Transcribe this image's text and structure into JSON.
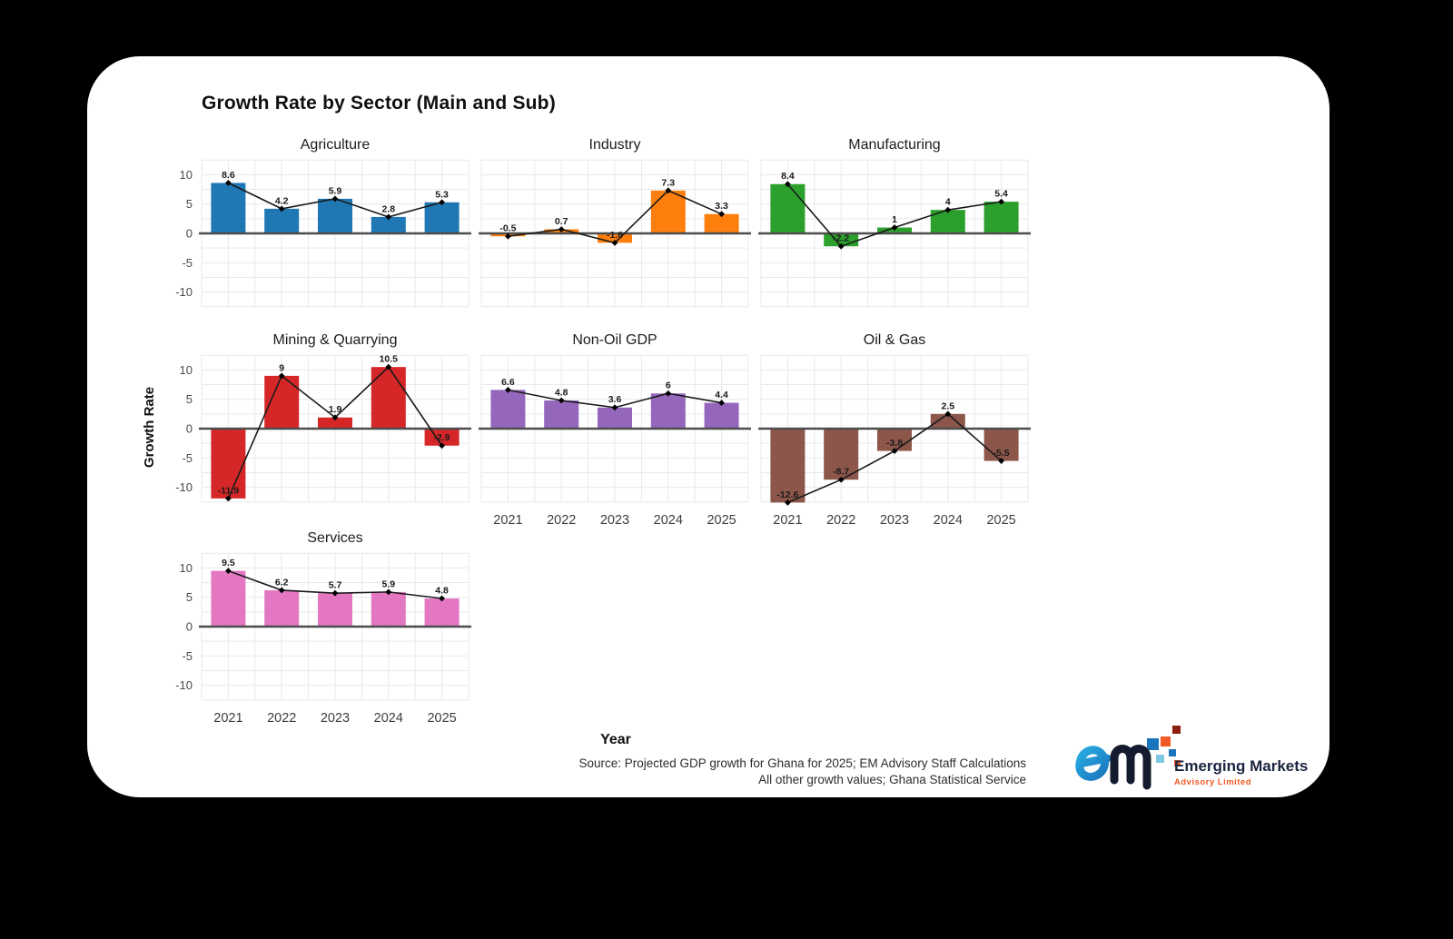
{
  "page": {
    "title": "Growth Rate by Sector (Main and Sub)",
    "background": "#000000",
    "card_background": "#ffffff"
  },
  "chart_data": {
    "type": "bar",
    "overlay": "line-with-markers",
    "title": "Growth Rate by Sector (Main and Sub)",
    "categories": [
      "2021",
      "2022",
      "2023",
      "2024",
      "2025"
    ],
    "xlabel": "Year",
    "ylabel": "Growth Rate",
    "yticks": [
      10,
      5,
      0,
      -5,
      -10
    ],
    "ylim": [
      -13,
      13
    ],
    "grid": true,
    "gridline_color": "#e9e9e9",
    "zero_line_color": "#4d4d4d",
    "line_color": "#1a1a1a",
    "facets": [
      {
        "name": "Agriculture",
        "color": "#1f77b4",
        "row": 0,
        "col": 0,
        "show_y_ticks": true,
        "show_x_ticks": false,
        "values": [
          8.6,
          4.2,
          5.9,
          2.8,
          5.3
        ]
      },
      {
        "name": "Industry",
        "color": "#ff7f0e",
        "row": 0,
        "col": 1,
        "show_y_ticks": false,
        "show_x_ticks": false,
        "values": [
          -0.5,
          0.7,
          -1.6,
          7.3,
          3.3
        ]
      },
      {
        "name": "Manufacturing",
        "color": "#2ca02c",
        "row": 0,
        "col": 2,
        "show_y_ticks": false,
        "show_x_ticks": false,
        "values": [
          8.4,
          -2.2,
          1,
          4,
          5.4
        ]
      },
      {
        "name": "Mining & Quarrying",
        "color": "#d62728",
        "row": 1,
        "col": 0,
        "show_y_ticks": true,
        "show_x_ticks": false,
        "values": [
          -11.9,
          9,
          1.9,
          10.5,
          -2.9
        ]
      },
      {
        "name": "Non-Oil GDP",
        "color": "#9467bd",
        "row": 1,
        "col": 1,
        "show_y_ticks": false,
        "show_x_ticks": true,
        "values": [
          6.6,
          4.8,
          3.6,
          6,
          4.4
        ]
      },
      {
        "name": "Oil & Gas",
        "color": "#8c564b",
        "row": 1,
        "col": 2,
        "show_y_ticks": false,
        "show_x_ticks": true,
        "values": [
          -12.6,
          -8.7,
          -3.8,
          2.5,
          -5.5
        ]
      },
      {
        "name": "Services",
        "color": "#e377c2",
        "row": 2,
        "col": 0,
        "show_y_ticks": true,
        "show_x_ticks": true,
        "values": [
          9.5,
          6.2,
          5.7,
          5.9,
          4.8
        ]
      }
    ]
  },
  "source": {
    "line1": "Source: Projected GDP growth for Ghana for 2025; EM Advisory Staff Calculations",
    "line2": "All other growth values; Ghana Statistical Service"
  },
  "logo": {
    "monogram": "em",
    "brand": "Emerging Markets",
    "subtitle": "Advisory Limited",
    "colors": {
      "blue": "#1b75bc",
      "light_blue": "#29abe2",
      "orange": "#f15a24",
      "dark_red": "#8b1e0e",
      "navy": "#1b2440"
    }
  }
}
